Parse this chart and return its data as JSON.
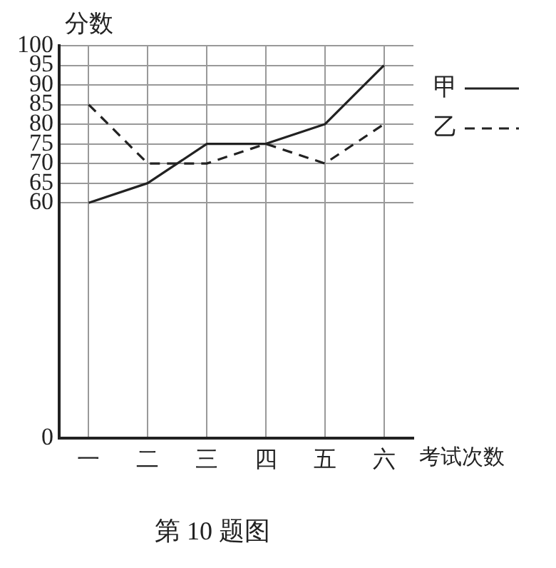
{
  "chart_data": {
    "type": "line",
    "title": "第 10 题图",
    "xlabel": "考试次数",
    "ylabel": "分数",
    "categories": [
      "一",
      "二",
      "三",
      "四",
      "五",
      "六"
    ],
    "series": [
      {
        "name": "甲",
        "color": "#222222",
        "line_style": "solid",
        "values": [
          60,
          65,
          75,
          75,
          80,
          95
        ]
      },
      {
        "name": "乙",
        "color": "#222222",
        "line_style": "dashed",
        "values": [
          85,
          70,
          70,
          75,
          70,
          80
        ]
      }
    ],
    "ylim": [
      0,
      100
    ],
    "yticks": [
      0,
      60,
      65,
      70,
      75,
      80,
      85,
      90,
      95,
      100
    ],
    "grid": true,
    "legend": "top right",
    "marker": "none"
  }
}
